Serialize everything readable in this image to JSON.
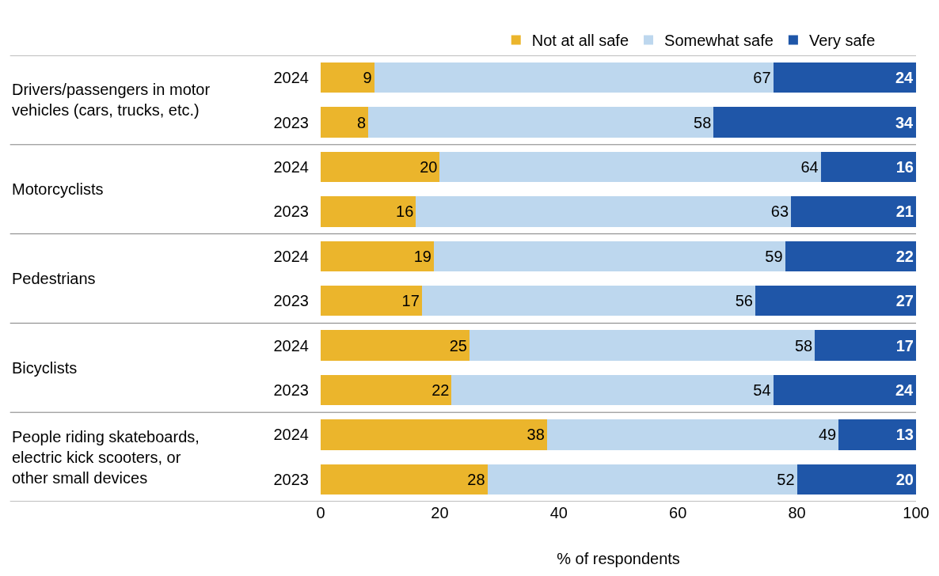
{
  "chart_data": {
    "type": "bar",
    "orientation": "horizontal",
    "stacked": true,
    "categories": [
      "2024",
      "2023",
      "2024",
      "2023",
      "2024",
      "2023",
      "2024",
      "2023",
      "2024",
      "2023"
    ],
    "series": [
      {
        "name": "Not at all safe",
        "color": "#ebb52c",
        "values": [
          9,
          8,
          20,
          16,
          19,
          17,
          25,
          22,
          38,
          28
        ]
      },
      {
        "name": "Somewhat safe",
        "color": "#bdd7ee",
        "values": [
          67,
          58,
          64,
          63,
          59,
          56,
          58,
          54,
          49,
          52
        ]
      },
      {
        "name": "Very safe",
        "color": "#1f56a8",
        "values": [
          24,
          34,
          16,
          21,
          22,
          27,
          17,
          24,
          13,
          20
        ]
      }
    ],
    "annotations": [
      "Drivers/passengers in motor vehicles (cars, trucks, etc.)",
      "Motorcyclists",
      "Pedestrians",
      "Bicyclists",
      "People riding skateboards, electric kick scooters, or other small devices"
    ],
    "xlabel": "% of respondents",
    "xlim": [
      0,
      100
    ],
    "xticks": [
      0,
      20,
      40,
      60,
      80,
      100
    ],
    "data_labels": true,
    "legend": "top"
  }
}
